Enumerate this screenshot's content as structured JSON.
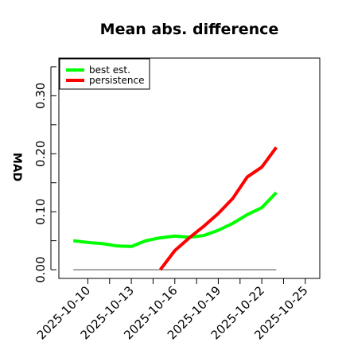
{
  "chart_data": {
    "type": "line",
    "title": "Mean abs. difference",
    "xlabel": "",
    "ylabel": "MAD",
    "x": [
      "2025-10-09",
      "2025-10-10",
      "2025-10-11",
      "2025-10-12",
      "2025-10-13",
      "2025-10-14",
      "2025-10-15",
      "2025-10-16",
      "2025-10-17",
      "2025-10-18",
      "2025-10-19",
      "2025-10-20",
      "2025-10-21",
      "2025-10-22",
      "2025-10-23"
    ],
    "x_ticks": [
      "2025-10-10",
      "2025-10-13",
      "2025-10-16",
      "2025-10-19",
      "2025-10-22",
      "2025-10-25"
    ],
    "xlim": [
      "2025-10-08",
      "2025-10-26"
    ],
    "ylim": [
      -0.015,
      0.365
    ],
    "y_ticks": [
      0.0,
      0.1,
      0.2,
      0.3
    ],
    "y_tick_labels": [
      "0.00",
      "0.10",
      "0.20",
      "0.30"
    ],
    "series": [
      {
        "name": "best est.",
        "color": "#00ff00",
        "values": [
          0.05,
          0.047,
          0.045,
          0.041,
          0.04,
          0.05,
          0.055,
          0.058,
          0.056,
          0.059,
          0.068,
          0.08,
          0.095,
          0.107,
          0.133
        ]
      },
      {
        "name": "persistence",
        "color": "#ff0000",
        "values": [
          null,
          null,
          null,
          null,
          null,
          null,
          0.0,
          0.033,
          0.055,
          0.075,
          0.097,
          0.123,
          0.16,
          0.177,
          0.211
        ]
      },
      {
        "name": "",
        "color": "#888888",
        "values": [
          0,
          0,
          0,
          0,
          0,
          0,
          0,
          0,
          0,
          0,
          0,
          0,
          0,
          0,
          0
        ]
      }
    ],
    "grid": false,
    "legend_position": "top-left"
  }
}
